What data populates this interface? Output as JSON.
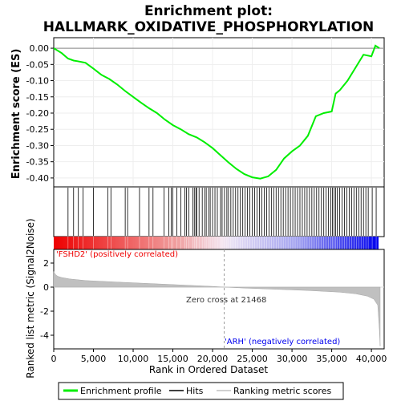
{
  "chart_data": {
    "type": "line",
    "title_line1": "Enrichment plot:",
    "title_line2": "HALLMARK_OXIDATIVE_PHOSPHORYLATION",
    "top_panel": {
      "ylabel": "Enrichment score (ES)",
      "ylim": [
        -0.42,
        0.02
      ],
      "yticks": [
        "0.00",
        "-0.05",
        "-0.10",
        "-0.15",
        "-0.20",
        "-0.25",
        "-0.30",
        "-0.35",
        "-0.40"
      ],
      "ytick_values": [
        0.0,
        -0.05,
        -0.1,
        -0.15,
        -0.2,
        -0.25,
        -0.3,
        -0.35,
        -0.4
      ],
      "series": [
        {
          "name": "Enrichment profile",
          "color": "#00ee00",
          "x": [
            0,
            1000,
            1800,
            2500,
            3000,
            3600,
            4000,
            5000,
            6000,
            7000,
            8000,
            9000,
            10000,
            11000,
            12000,
            13000,
            14000,
            15000,
            16000,
            17000,
            18000,
            19000,
            20000,
            21000,
            22000,
            23000,
            24000,
            25000,
            26000,
            27000,
            28000,
            29000,
            30000,
            31000,
            32000,
            33000,
            34000,
            35000,
            35500,
            36000,
            37000,
            38000,
            39000,
            40000,
            40500,
            41000
          ],
          "values": [
            0.0,
            -0.015,
            -0.032,
            -0.038,
            -0.04,
            -0.043,
            -0.045,
            -0.063,
            -0.082,
            -0.095,
            -0.112,
            -0.132,
            -0.15,
            -0.168,
            -0.185,
            -0.2,
            -0.22,
            -0.237,
            -0.25,
            -0.265,
            -0.275,
            -0.29,
            -0.308,
            -0.33,
            -0.352,
            -0.372,
            -0.388,
            -0.398,
            -0.402,
            -0.395,
            -0.375,
            -0.34,
            -0.318,
            -0.3,
            -0.27,
            -0.21,
            -0.2,
            -0.195,
            -0.14,
            -0.13,
            -0.1,
            -0.06,
            -0.02,
            -0.025,
            0.008,
            0.0
          ]
        }
      ]
    },
    "hits": {
      "name": "Hits",
      "color": "#000000",
      "positions": [
        1800,
        2500,
        3100,
        3700,
        5000,
        6800,
        7200,
        9000,
        9300,
        10800,
        12000,
        12500,
        13900,
        14500,
        14800,
        15000,
        15500,
        16000,
        16500,
        16700,
        17000,
        17500,
        17700,
        17900,
        18000,
        18300,
        18700,
        19000,
        19200,
        19500,
        19700,
        20000,
        20300,
        20600,
        21000,
        21200,
        21500,
        21800,
        22000,
        22300,
        22600,
        22900,
        23200,
        23500,
        23800,
        24100,
        24400,
        24700,
        25000,
        25300,
        25600,
        25900,
        26200,
        26500,
        26800,
        27100,
        27400,
        27700,
        28000,
        28300,
        28600,
        28900,
        29200,
        29500,
        29800,
        30100,
        30400,
        30700,
        31000,
        31300,
        31600,
        31900,
        32200,
        32500,
        32800,
        33100,
        33400,
        33700,
        34000,
        34300,
        34600,
        34900,
        35100,
        35300,
        35500,
        35700,
        36000,
        36300,
        36600,
        36900,
        37200,
        37500,
        37800,
        38100,
        38400,
        38700,
        39000,
        39300,
        39600,
        40100,
        40600
      ]
    },
    "rank_bar": {
      "label_positive": "'FSHD2' (positively correlated)",
      "label_negative": "'ARH' (negatively correlated)",
      "color_positive": "#ee0000",
      "color_negative": "#0000ee"
    },
    "bottom_panel": {
      "ylabel": "Ranked list metric (Signal2Noise)",
      "ylim": [
        -5,
        3
      ],
      "yticks": [
        "2",
        "0",
        "-2",
        "-4"
      ],
      "ytick_values": [
        2,
        0,
        -2,
        -4
      ],
      "zero_cross_label": "Zero cross at 21468",
      "zero_cross": 21468,
      "series": [
        {
          "name": "Ranking metric scores",
          "color": "#c0c0c0",
          "x": [
            0,
            200,
            500,
            1000,
            2000,
            4000,
            8000,
            12000,
            16000,
            20000,
            21468,
            24000,
            28000,
            32000,
            36000,
            38000,
            39500,
            40300,
            40800,
            41000,
            41100
          ],
          "values": [
            1.3,
            1.05,
            0.9,
            0.8,
            0.68,
            0.55,
            0.42,
            0.3,
            0.18,
            0.06,
            0.0,
            -0.08,
            -0.18,
            -0.28,
            -0.42,
            -0.55,
            -0.75,
            -1.0,
            -1.5,
            -3.5,
            -4.9
          ]
        }
      ]
    },
    "x_axis": {
      "xlabel": "Rank in Ordered Dataset",
      "xlim": [
        0,
        41200
      ],
      "xticks": [
        "0",
        "5,000",
        "10,000",
        "15,000",
        "20,000",
        "25,000",
        "30,000",
        "35,000",
        "40,000"
      ],
      "xtick_values": [
        0,
        5000,
        10000,
        15000,
        20000,
        25000,
        30000,
        35000,
        40000
      ]
    },
    "legend": {
      "placement": "bottom",
      "entries": [
        "Enrichment profile",
        "Hits",
        "Ranking metric scores"
      ]
    }
  }
}
